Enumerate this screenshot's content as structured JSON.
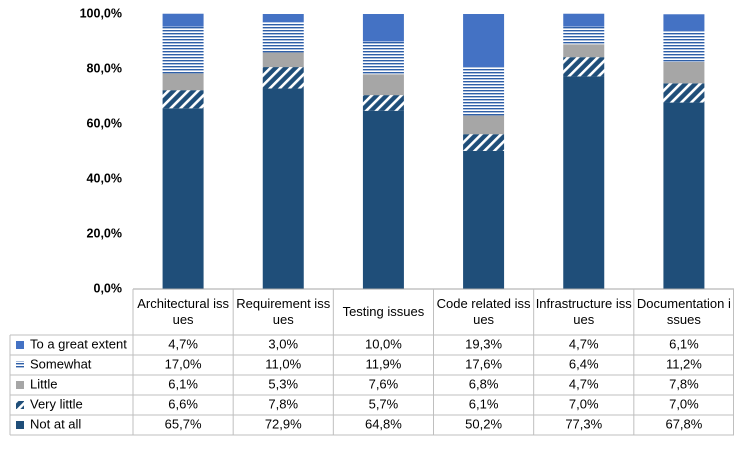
{
  "chart_data": {
    "type": "stacked_bar_100",
    "categories": [
      "Architectural issues",
      "Requirement issues",
      "Testing issues",
      "Code related issues",
      "Infrastructure issues",
      "Documentation issues"
    ],
    "series": [
      {
        "name": "To a great extent",
        "color": "#4472c4",
        "values": [
          4.7,
          3.0,
          10.0,
          19.3,
          4.7,
          6.1
        ],
        "value_labels": [
          "4,7%",
          "3,0%",
          "10,0%",
          "19,3%",
          "4,7%",
          "6,1%"
        ]
      },
      {
        "name": "Somewhat",
        "color": "#2e5fa8",
        "pattern": "horizontal",
        "values": [
          17.0,
          11.0,
          11.9,
          17.6,
          6.4,
          11.2
        ],
        "value_labels": [
          "17,0%",
          "11,0%",
          "11,9%",
          "17,6%",
          "6,4%",
          "11,2%"
        ]
      },
      {
        "name": "Little",
        "color": "#a6a6a6",
        "values": [
          6.1,
          5.3,
          7.6,
          6.8,
          4.7,
          7.8
        ],
        "value_labels": [
          "6,1%",
          "5,3%",
          "7,6%",
          "6,8%",
          "4,7%",
          "7,8%"
        ]
      },
      {
        "name": "Very little",
        "color": "#1f4e79",
        "pattern": "diagonal",
        "values": [
          6.6,
          7.8,
          5.7,
          6.1,
          7.0,
          7.0
        ],
        "value_labels": [
          "6,6%",
          "7,8%",
          "5,7%",
          "6,1%",
          "7,0%",
          "7,0%"
        ]
      },
      {
        "name": "Not at all",
        "color": "#1f4e79",
        "values": [
          65.7,
          72.9,
          64.8,
          50.2,
          77.3,
          67.8
        ],
        "value_labels": [
          "65,7%",
          "72,9%",
          "64,8%",
          "50,2%",
          "77,3%",
          "67,8%"
        ]
      }
    ],
    "ylim": [
      0,
      100
    ],
    "yticks": [
      {
        "value": 0,
        "label": "0,0%"
      },
      {
        "value": 20,
        "label": "20,0%"
      },
      {
        "value": 40,
        "label": "40,0%"
      },
      {
        "value": 60,
        "label": "60,0%"
      },
      {
        "value": 80,
        "label": "80,0%"
      },
      {
        "value": 100,
        "label": "100,0%"
      }
    ],
    "data_table": true
  }
}
